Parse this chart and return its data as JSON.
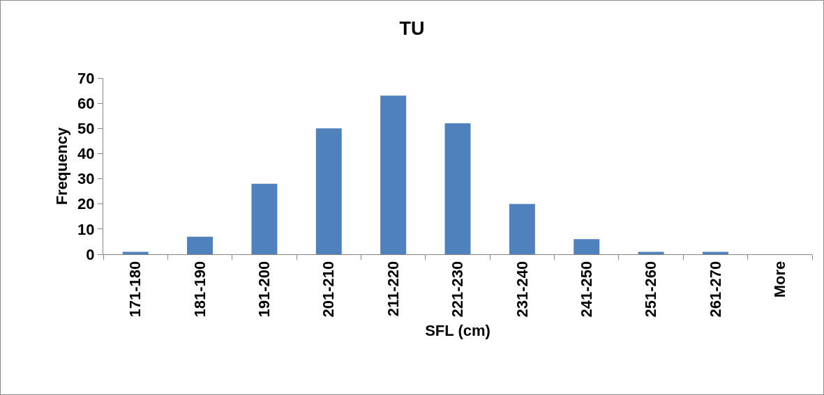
{
  "chart_data": {
    "type": "bar",
    "title": "TU",
    "xlabel": "SFL (cm)",
    "ylabel": "Frequency",
    "categories": [
      "171-180",
      "181-190",
      "191-200",
      "201-210",
      "211-220",
      "221-230",
      "231-240",
      "241-250",
      "251-260",
      "261-270",
      "More"
    ],
    "values": [
      1,
      7,
      28,
      50,
      63,
      52,
      20,
      6,
      1,
      1,
      0
    ],
    "color": "#4f81bd",
    "ylim": [
      0,
      70
    ],
    "yticks": [
      0,
      10,
      20,
      30,
      40,
      50,
      60,
      70
    ],
    "grid": false,
    "legend": false
  }
}
